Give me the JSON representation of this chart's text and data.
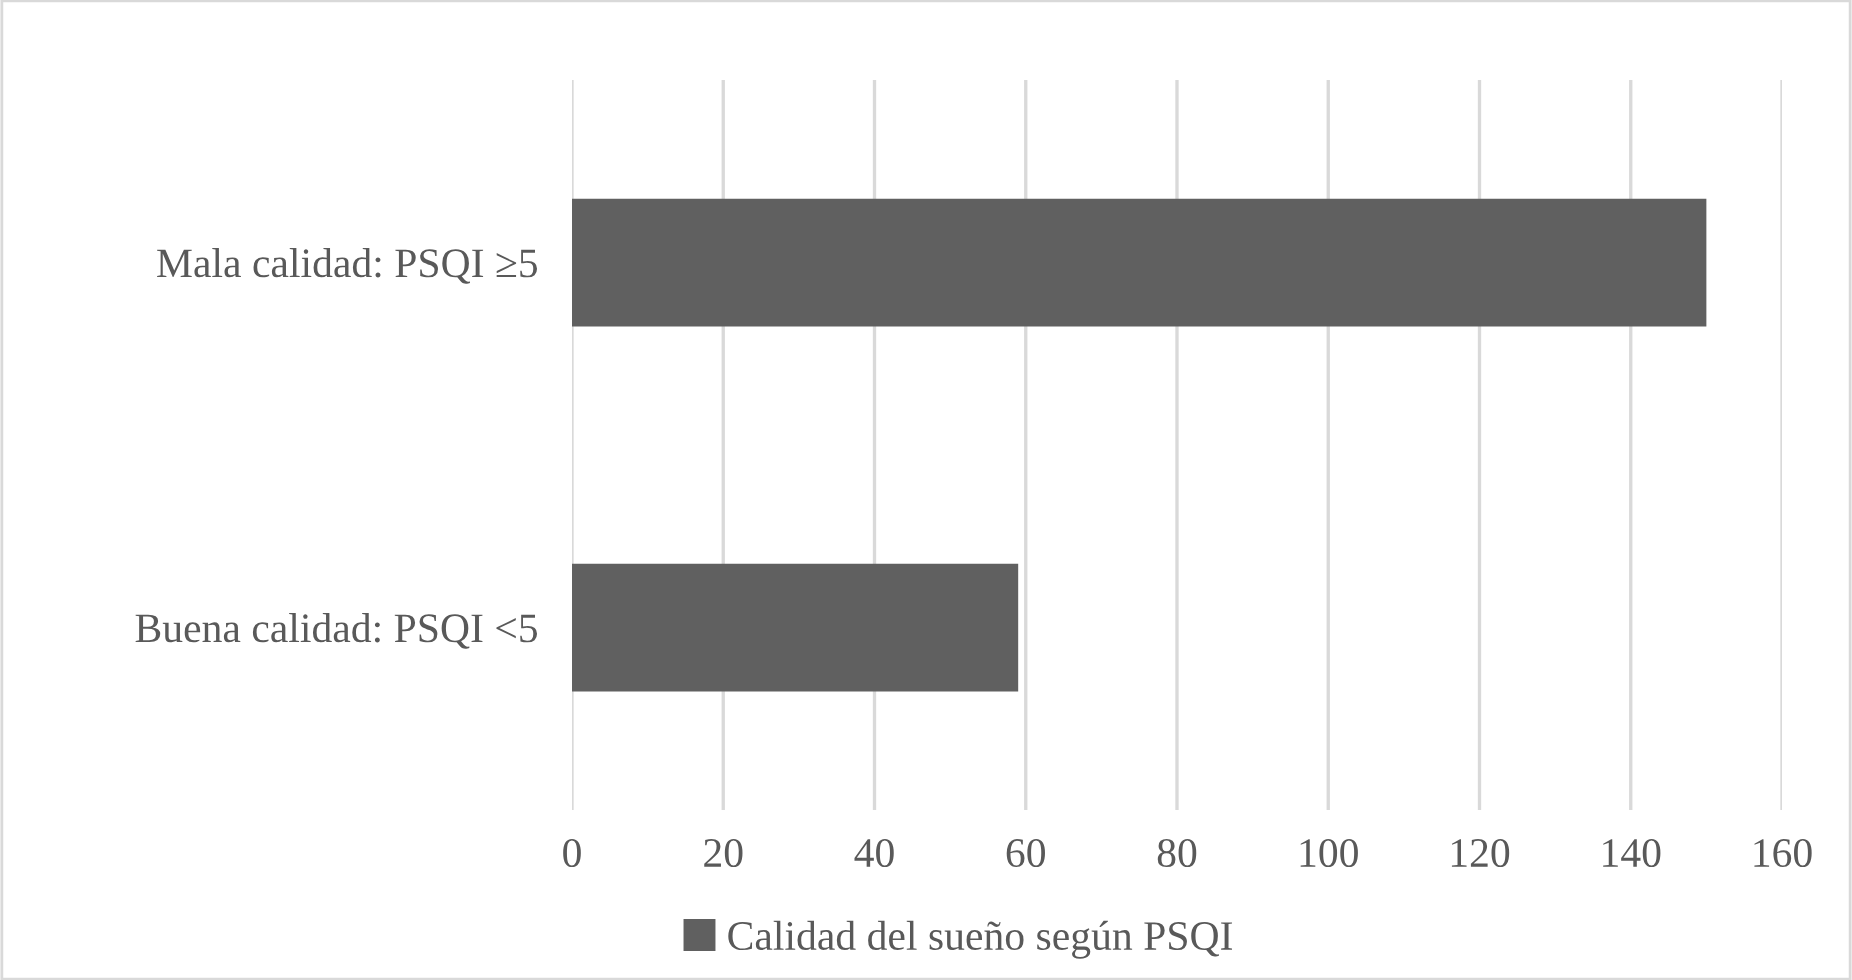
{
  "chart_data": {
    "type": "bar",
    "orientation": "horizontal",
    "categories": [
      "Mala calidad: PSQI ≥5",
      "Buena calidad: PSQI <5"
    ],
    "series": [
      {
        "name": "Calidad del sueño según PSQI",
        "color": "#606060",
        "values": [
          150,
          59
        ]
      }
    ],
    "xlim": [
      0,
      160
    ],
    "xticks": [
      0,
      20,
      40,
      60,
      80,
      100,
      120,
      140,
      160
    ],
    "grid": "x",
    "legend": "bottom"
  }
}
